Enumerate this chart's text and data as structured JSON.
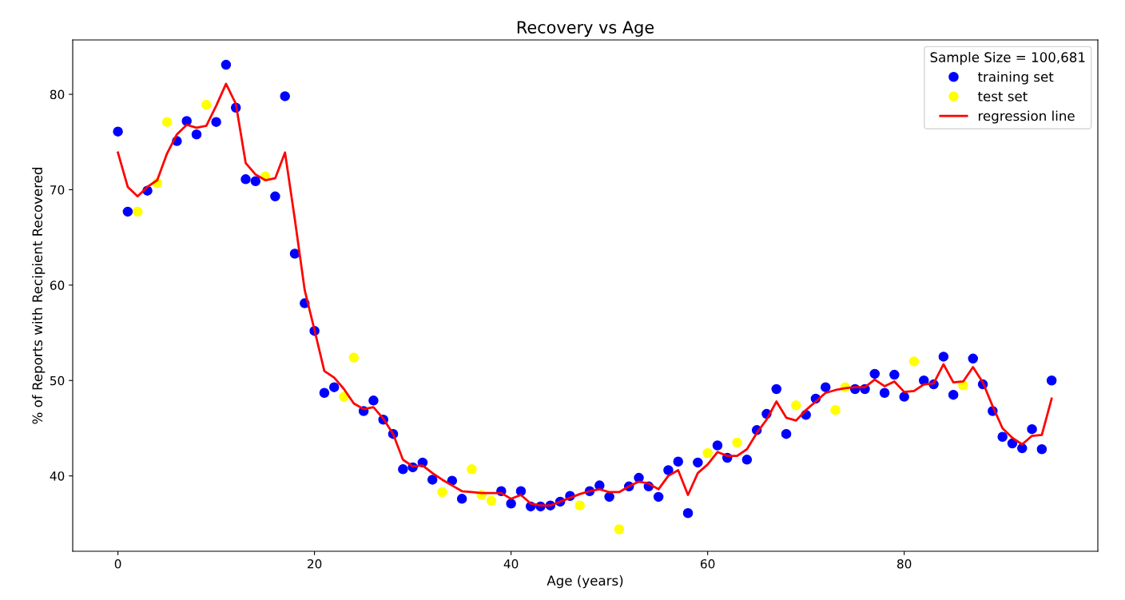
{
  "chart_data": {
    "type": "scatter",
    "title": "Recovery vs Age",
    "xlabel": "Age (years)",
    "ylabel": "% of Reports with Recipient Recovered",
    "legend_title": "Sample Size = 100,681",
    "legend": "top right",
    "grid": false,
    "xlim": [
      -4.6,
      99.7
    ],
    "xticks": [
      0,
      20,
      40,
      60,
      80
    ],
    "ylim": [
      32.1,
      85.7
    ],
    "yticks": [
      40,
      50,
      60,
      70,
      80
    ],
    "series": [
      {
        "name": "training set",
        "marker": "circle",
        "color": "#0000ff",
        "x": [
          0,
          1,
          3,
          6,
          7,
          8,
          10,
          11,
          12,
          13,
          14,
          16,
          17,
          18,
          19,
          20,
          21,
          22,
          25,
          26,
          27,
          28,
          29,
          30,
          31,
          32,
          34,
          35,
          39,
          40,
          41,
          42,
          43,
          44,
          45,
          46,
          48,
          49,
          50,
          52,
          53,
          54,
          55,
          56,
          57,
          58,
          59,
          61,
          62,
          64,
          65,
          66,
          67,
          68,
          70,
          71,
          72,
          75,
          76,
          77,
          78,
          79,
          80,
          82,
          83,
          84,
          85,
          87,
          88,
          89,
          90,
          91,
          92,
          93,
          94,
          95
        ],
        "values": [
          76.1,
          67.7,
          69.9,
          75.1,
          77.2,
          75.8,
          77.1,
          83.1,
          78.6,
          71.1,
          70.9,
          69.3,
          79.8,
          63.3,
          58.1,
          55.2,
          48.7,
          49.3,
          46.8,
          47.9,
          45.9,
          44.4,
          40.7,
          40.9,
          41.4,
          39.6,
          39.5,
          37.6,
          38.4,
          37.1,
          38.4,
          36.8,
          36.8,
          36.9,
          37.3,
          37.9,
          38.4,
          39.0,
          37.8,
          38.9,
          39.8,
          38.9,
          37.8,
          40.6,
          41.5,
          36.1,
          41.4,
          43.2,
          41.9,
          41.7,
          44.8,
          46.5,
          49.1,
          44.4,
          46.4,
          48.1,
          49.3,
          49.1,
          49.1,
          50.7,
          48.7,
          50.6,
          48.3,
          50.0,
          49.6,
          52.5,
          48.5,
          52.3,
          49.6,
          46.8,
          44.1,
          43.4,
          42.9,
          44.9,
          42.8,
          50.0
        ]
      },
      {
        "name": "test set",
        "marker": "circle",
        "color": "#ffff00",
        "x": [
          2,
          4,
          5,
          9,
          15,
          23,
          24,
          33,
          36,
          37,
          38,
          47,
          51,
          60,
          63,
          69,
          73,
          74,
          81,
          86
        ],
        "values": [
          67.7,
          70.7,
          77.1,
          78.9,
          71.4,
          48.3,
          52.4,
          38.3,
          40.7,
          38.0,
          37.4,
          36.9,
          34.4,
          42.4,
          43.5,
          47.4,
          46.9,
          49.3,
          52.0,
          49.5
        ]
      },
      {
        "name": "regression line",
        "type": "line",
        "marker": "none",
        "color": "#ff0000",
        "line_style": "solid",
        "x": [
          0,
          1,
          2,
          3,
          4,
          5,
          6,
          7,
          8,
          9,
          10,
          11,
          12,
          13,
          14,
          15,
          16,
          17,
          18,
          19,
          20,
          21,
          22,
          23,
          24,
          25,
          26,
          27,
          28,
          29,
          30,
          31,
          32,
          33,
          34,
          35,
          36,
          37,
          38,
          39,
          40,
          41,
          42,
          43,
          44,
          45,
          46,
          47,
          48,
          49,
          50,
          51,
          52,
          53,
          54,
          55,
          56,
          57,
          58,
          59,
          60,
          61,
          62,
          63,
          64,
          65,
          66,
          67,
          68,
          69,
          70,
          71,
          72,
          73,
          74,
          75,
          76,
          77,
          78,
          79,
          80,
          81,
          82,
          83,
          84,
          85,
          86,
          87,
          88,
          89,
          90,
          91,
          92,
          93,
          94,
          95
        ],
        "values": [
          73.9,
          70.3,
          69.3,
          70.3,
          71.0,
          73.8,
          75.8,
          76.8,
          76.5,
          76.7,
          78.8,
          81.1,
          79.0,
          72.8,
          71.6,
          71.0,
          71.2,
          73.9,
          66.9,
          59.5,
          55.3,
          51.0,
          50.3,
          49.1,
          47.6,
          47.0,
          47.2,
          46.0,
          44.4,
          41.7,
          41.0,
          41.1,
          40.3,
          39.6,
          39.0,
          38.4,
          38.3,
          38.2,
          38.2,
          38.2,
          37.6,
          38.0,
          37.1,
          36.9,
          36.9,
          37.3,
          37.7,
          38.1,
          38.4,
          38.6,
          38.3,
          38.3,
          38.9,
          39.4,
          39.2,
          38.6,
          40.0,
          40.6,
          38.0,
          40.3,
          41.2,
          42.5,
          42.1,
          42.1,
          42.8,
          44.5,
          45.9,
          47.8,
          46.1,
          45.8,
          46.9,
          47.8,
          48.7,
          49.0,
          49.2,
          49.3,
          49.3,
          50.1,
          49.4,
          49.9,
          48.8,
          48.9,
          49.6,
          49.7,
          51.7,
          49.8,
          49.9,
          51.4,
          49.8,
          47.3,
          45.0,
          44.0,
          43.3,
          44.2,
          44.3,
          48.1
        ]
      }
    ]
  }
}
